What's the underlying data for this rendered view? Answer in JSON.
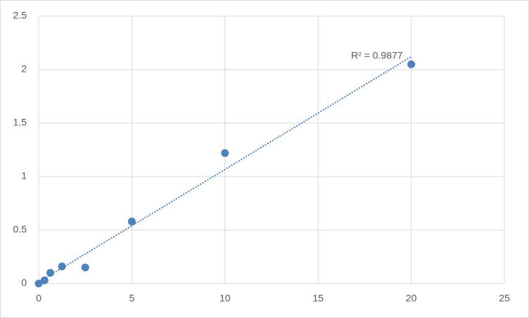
{
  "chart_data": {
    "type": "scatter",
    "series": [
      {
        "color": "#4f81bd",
        "x": [
          0,
          0.3125,
          0.625,
          1.25,
          2.5,
          5,
          10,
          20
        ],
        "values": [
          0,
          0.03,
          0.1,
          0.16,
          0.15,
          0.58,
          1.22,
          2.05
        ]
      }
    ],
    "trendline": {
      "type": "linear",
      "slope": 0.1054,
      "intercept": 0.013,
      "label": "R² = 0.9877",
      "color": "#4f81bd"
    },
    "xlim": [
      0,
      25
    ],
    "xticks": [
      0,
      5,
      10,
      15,
      20,
      25
    ],
    "ylim": [
      0,
      2.5
    ],
    "yticks": [
      0,
      0.5,
      1,
      1.5,
      2,
      2.5
    ],
    "grid": true
  }
}
